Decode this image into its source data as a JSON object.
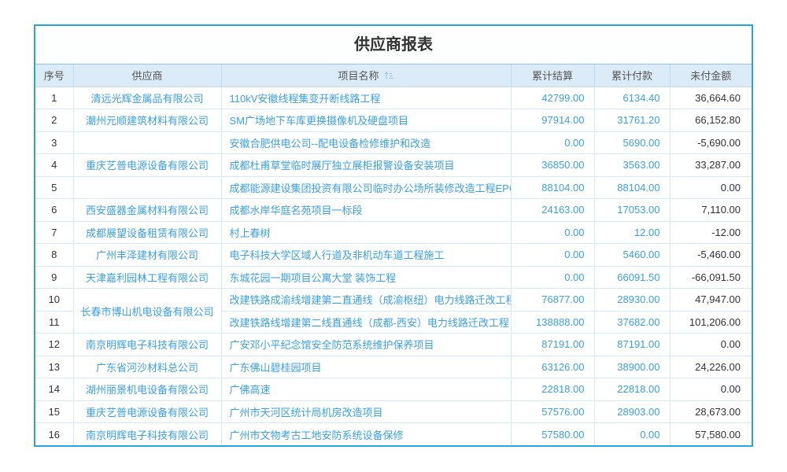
{
  "title": "供应商报表",
  "colors": {
    "card_border": "#27a5e2",
    "header_bg": "#dcebf8",
    "grid_line": "#d8e7f5",
    "link_blue": "#3aa0e6",
    "dark_text": "#333333"
  },
  "table": {
    "columns": [
      {
        "key": "index",
        "label": "序号",
        "sortable": false
      },
      {
        "key": "supplier",
        "label": "供应商",
        "sortable": false
      },
      {
        "key": "project",
        "label": "项目名称",
        "sortable": true
      },
      {
        "key": "settled",
        "label": "累计结算",
        "sortable": false
      },
      {
        "key": "paid",
        "label": "累计付款",
        "sortable": false
      },
      {
        "key": "unpaid",
        "label": "未付金额",
        "sortable": false
      }
    ],
    "rows": [
      {
        "index": "1",
        "supplier": "清远光辉金属品有限公司",
        "project": "110kV安徽线程集变开断线路工程",
        "settled": "42799.00",
        "paid": "6134.40",
        "unpaid": "36,664.60"
      },
      {
        "index": "2",
        "supplier": "潮州元顺建筑材料有限公司",
        "project": "SM广场地下车库更换摄像机及硬盘项目",
        "settled": "97914.00",
        "paid": "31761.20",
        "unpaid": "66,152.80"
      },
      {
        "index": "3",
        "supplier": "",
        "project": "安徽合肥供电公司--配电设备检修维护和改造",
        "settled": "0.00",
        "paid": "5690.00",
        "unpaid": "-5,690.00"
      },
      {
        "index": "4",
        "supplier": "重庆艺普电源设备有限公司",
        "project": "成都杜甫草堂临时展厅独立展柜报警设备安装项目",
        "settled": "36850.00",
        "paid": "3563.00",
        "unpaid": "33,287.00"
      },
      {
        "index": "5",
        "supplier": "",
        "project": "成都能源建设集团投资有限公司临时办公场所装修改造工程EPC总承包",
        "settled": "88104.00",
        "paid": "88104.00",
        "unpaid": "0.00"
      },
      {
        "index": "6",
        "supplier": "西安盛器金属材料有限公司",
        "project": "成都水岸华庭名苑项目一标段",
        "settled": "24163.00",
        "paid": "17053.00",
        "unpaid": "7,110.00"
      },
      {
        "index": "7",
        "supplier": "成都展望设备租赁有限公司",
        "project": "村上春树",
        "settled": "0.00",
        "paid": "12.00",
        "unpaid": "-12.00"
      },
      {
        "index": "8",
        "supplier": "广州丰泽建材有限公司",
        "project": "电子科技大学区域人行道及非机动车道工程施工",
        "settled": "0.00",
        "paid": "5460.00",
        "unpaid": "-5,460.00"
      },
      {
        "index": "9",
        "supplier": "天津嘉利园林工程有限公司",
        "project": "东城花园一期项目公寓大堂 装饰工程",
        "settled": "0.00",
        "paid": "66091.50",
        "unpaid": "-66,091.50"
      },
      {
        "index": "10",
        "supplier": "长春市博山机电设备有限公司",
        "supplier_rowspan": 2,
        "project": "改建铁路成渝线增建第二直通线（成渝枢纽）电力线路迁改工程",
        "settled": "76877.00",
        "paid": "28930.00",
        "unpaid": "47,947.00"
      },
      {
        "index": "11",
        "supplier": null,
        "project": "改建铁路线增建第二线直通线（成都-西安）电力线路迁改工程",
        "settled": "138888.00",
        "paid": "37682.00",
        "unpaid": "101,206.00"
      },
      {
        "index": "12",
        "supplier": "南京明辉电子科技有限公司",
        "project": "广安邓小平纪念馆安全防范系统维护保养项目",
        "settled": "87191.00",
        "paid": "87191.00",
        "unpaid": "0.00"
      },
      {
        "index": "13",
        "supplier": "广东省河沙材料总公司",
        "project": "广东佛山碧桂园项目",
        "settled": "63126.00",
        "paid": "38900.00",
        "unpaid": "24,226.00"
      },
      {
        "index": "14",
        "supplier": "湖州丽景机电设备有限公司",
        "project": "广佛高速",
        "settled": "22818.00",
        "paid": "22818.00",
        "unpaid": "0.00"
      },
      {
        "index": "15",
        "supplier": "重庆艺普电源设备有限公司",
        "project": "广州市天河区统计局机房改造项目",
        "settled": "57576.00",
        "paid": "28903.00",
        "unpaid": "28,673.00"
      },
      {
        "index": "16",
        "supplier": "南京明辉电子科技有限公司",
        "project": "广州市文物考古工地安防系统设备保修",
        "settled": "57580.00",
        "paid": "0.00",
        "unpaid": "57,580.00"
      }
    ]
  }
}
